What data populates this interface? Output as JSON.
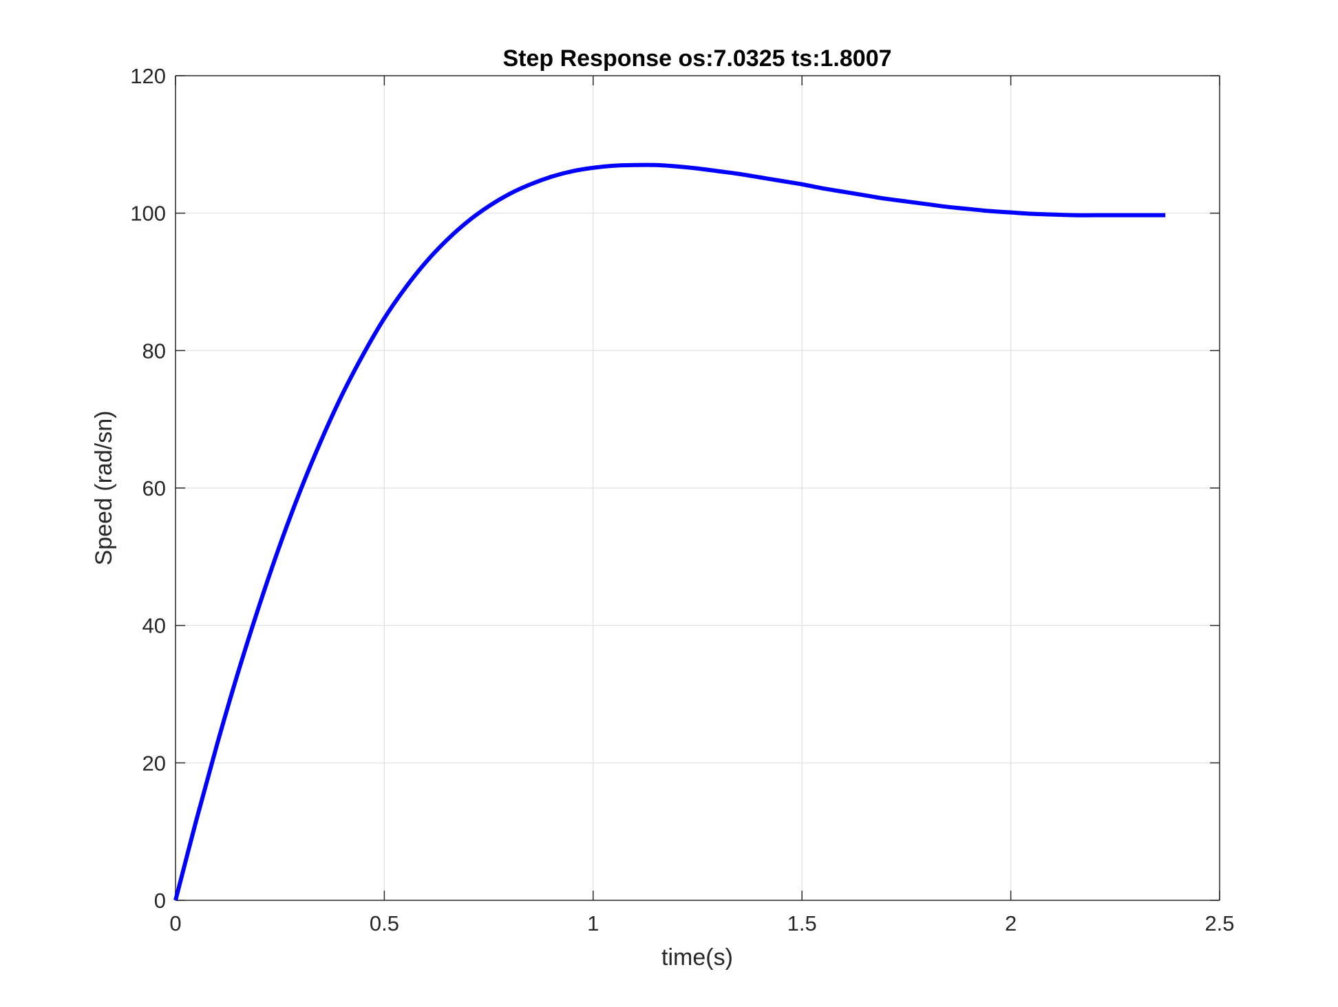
{
  "chart_data": {
    "type": "line",
    "title": "Step Response os:7.0325 ts:1.8007",
    "xlabel": "time(s)",
    "ylabel": "Speed (rad/sn)",
    "xlim": [
      0,
      2.5
    ],
    "ylim": [
      0,
      120
    ],
    "xticks": [
      0,
      0.5,
      1,
      1.5,
      2,
      2.5
    ],
    "xtick_labels": [
      "0",
      "0.5",
      "1",
      "1.5",
      "2",
      "2.5"
    ],
    "yticks": [
      0,
      20,
      40,
      60,
      80,
      100,
      120
    ],
    "ytick_labels": [
      "0",
      "20",
      "40",
      "60",
      "80",
      "100",
      "120"
    ],
    "grid": true,
    "legend": "none",
    "series": [
      {
        "color": "#0000ff",
        "x": [
          0,
          0.05,
          0.1,
          0.15,
          0.2,
          0.25,
          0.3,
          0.35,
          0.4,
          0.45,
          0.5,
          0.55,
          0.6,
          0.65,
          0.7,
          0.75,
          0.8,
          0.85,
          0.9,
          0.95,
          1.0,
          1.05,
          1.1,
          1.15,
          1.2,
          1.25,
          1.3,
          1.35,
          1.4,
          1.45,
          1.5,
          1.55,
          1.6,
          1.65,
          1.7,
          1.75,
          1.8,
          1.85,
          1.9,
          1.95,
          2.0,
          2.05,
          2.1,
          2.15,
          2.2,
          2.25,
          2.3,
          2.37
        ],
        "y": [
          0,
          11.7,
          22.8,
          33.2,
          42.8,
          51.7,
          59.8,
          67.1,
          73.7,
          79.5,
          84.7,
          89.1,
          92.9,
          96.1,
          98.8,
          101.0,
          102.8,
          104.2,
          105.3,
          106.1,
          106.6,
          106.9,
          107.0,
          107.0,
          106.8,
          106.5,
          106.1,
          105.7,
          105.2,
          104.7,
          104.2,
          103.6,
          103.1,
          102.6,
          102.1,
          101.7,
          101.3,
          100.9,
          100.6,
          100.3,
          100.1,
          99.9,
          99.8,
          99.7,
          99.7,
          99.7,
          99.7,
          99.7
        ]
      }
    ]
  }
}
